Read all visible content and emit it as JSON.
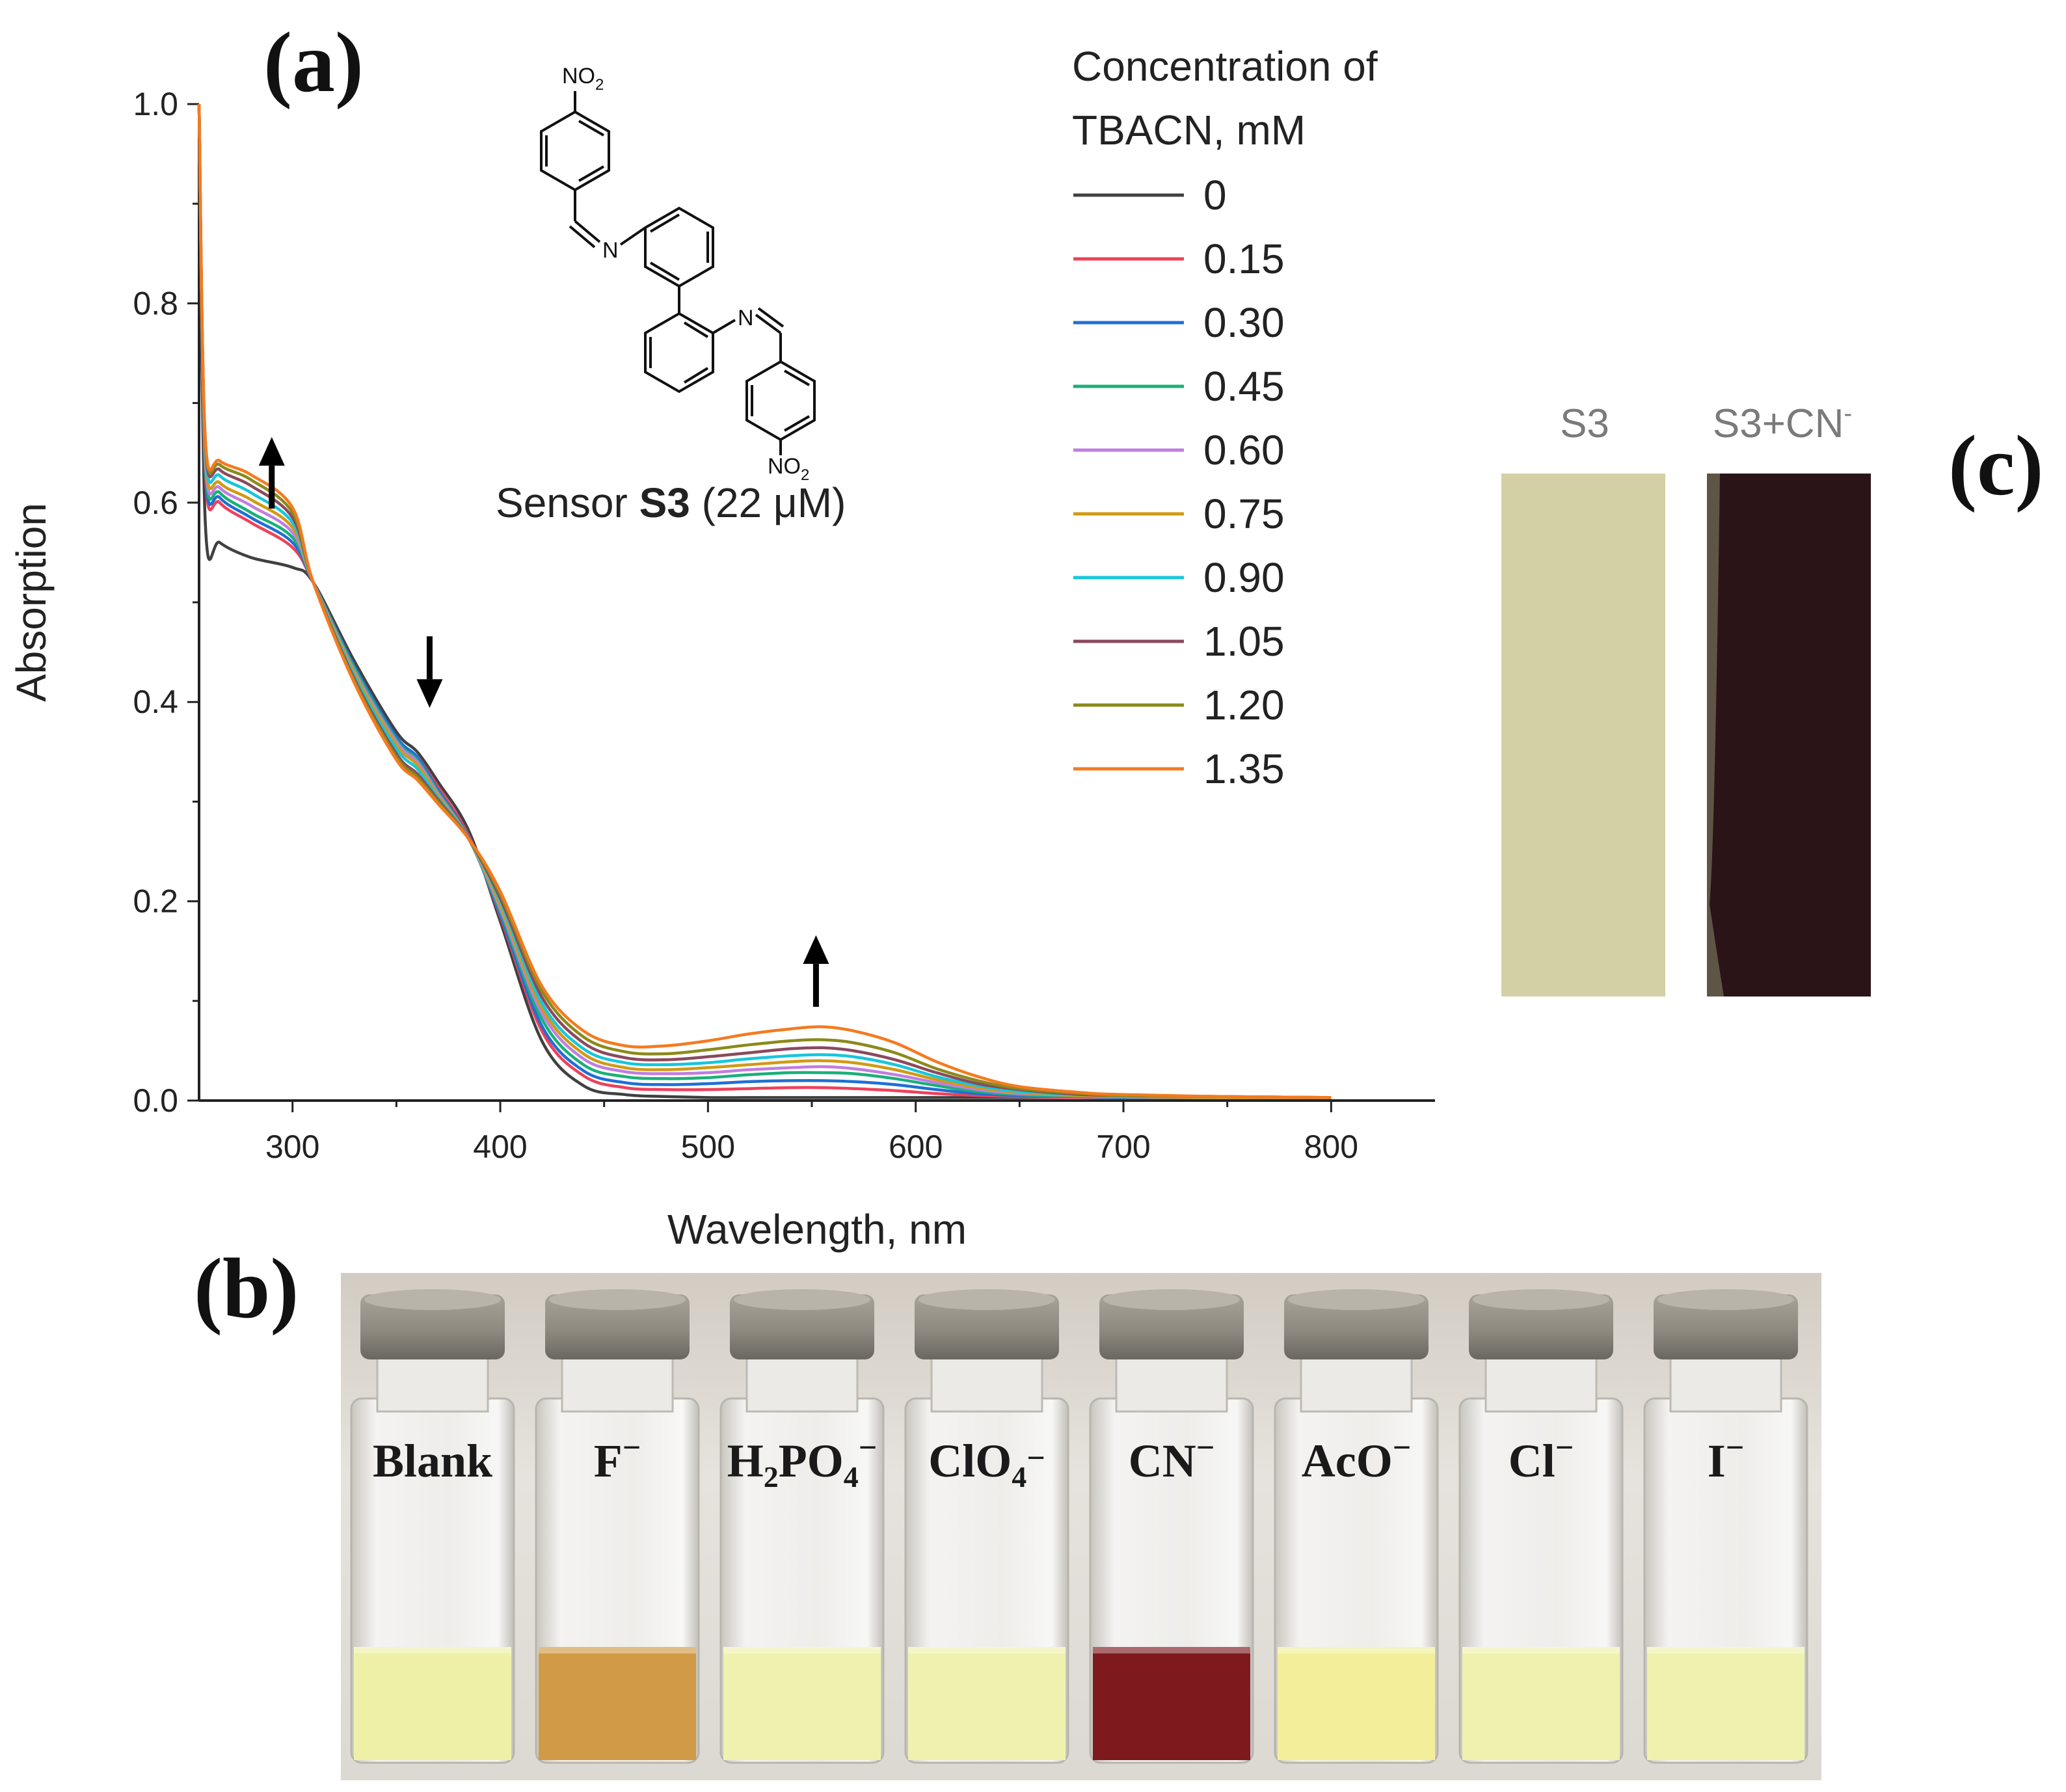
{
  "panels": {
    "a": "(a)",
    "b": "(b)",
    "c": "(c)"
  },
  "chart_data": {
    "type": "line",
    "title": "",
    "xlabel": "Wavelength, nm",
    "ylabel": "Absorption",
    "xlim": [
      255,
      850
    ],
    "ylim": [
      0,
      1.0
    ],
    "xticks": [
      300,
      400,
      500,
      600,
      700,
      800
    ],
    "yticks": [
      0.0,
      0.2,
      0.4,
      0.6,
      0.8,
      1.0
    ],
    "legend_title": "Concentration of TBACN, mM",
    "legend_title_lines": [
      "Concentration of",
      "TBACN, mM"
    ],
    "legend_position": "top-right",
    "x": [
      255,
      258,
      265,
      280,
      300,
      310,
      330,
      350,
      360,
      370,
      385,
      400,
      420,
      440,
      460,
      480,
      500,
      520,
      540,
      555,
      570,
      590,
      610,
      630,
      650,
      680,
      700,
      750,
      800
    ],
    "series": [
      {
        "name": "0",
        "color": "#404040",
        "values": [
          1.0,
          0.58,
          0.56,
          0.545,
          0.535,
          0.52,
          0.44,
          0.37,
          0.35,
          0.32,
          0.27,
          0.18,
          0.06,
          0.015,
          0.006,
          0.004,
          0.003,
          0.003,
          0.003,
          0.003,
          0.003,
          0.003,
          0.003,
          0.003,
          0.003,
          0.003,
          0.003,
          0.003,
          0.003
        ]
      },
      {
        "name": "0.15",
        "color": "#f0405a",
        "values": [
          1.0,
          0.63,
          0.6,
          0.58,
          0.555,
          0.52,
          0.435,
          0.365,
          0.345,
          0.315,
          0.265,
          0.185,
          0.07,
          0.025,
          0.013,
          0.011,
          0.011,
          0.012,
          0.013,
          0.013,
          0.012,
          0.01,
          0.007,
          0.005,
          0.004,
          0.003,
          0.003,
          0.003,
          0.003
        ]
      },
      {
        "name": "0.30",
        "color": "#1f6fd6",
        "values": [
          1.0,
          0.635,
          0.605,
          0.585,
          0.56,
          0.52,
          0.435,
          0.365,
          0.345,
          0.312,
          0.263,
          0.187,
          0.075,
          0.03,
          0.018,
          0.016,
          0.017,
          0.019,
          0.02,
          0.02,
          0.019,
          0.016,
          0.011,
          0.007,
          0.005,
          0.004,
          0.003,
          0.003,
          0.003
        ]
      },
      {
        "name": "0.45",
        "color": "#1ab07a",
        "values": [
          1.0,
          0.64,
          0.61,
          0.59,
          0.565,
          0.52,
          0.433,
          0.362,
          0.342,
          0.31,
          0.262,
          0.19,
          0.082,
          0.036,
          0.024,
          0.022,
          0.023,
          0.026,
          0.028,
          0.028,
          0.027,
          0.022,
          0.015,
          0.009,
          0.006,
          0.004,
          0.004,
          0.003,
          0.003
        ]
      },
      {
        "name": "0.60",
        "color": "#c07ee0",
        "values": [
          1.0,
          0.645,
          0.615,
          0.597,
          0.57,
          0.52,
          0.43,
          0.36,
          0.34,
          0.308,
          0.262,
          0.193,
          0.088,
          0.042,
          0.029,
          0.027,
          0.028,
          0.031,
          0.033,
          0.034,
          0.032,
          0.026,
          0.018,
          0.011,
          0.007,
          0.005,
          0.004,
          0.003,
          0.003
        ]
      },
      {
        "name": "0.75",
        "color": "#d19a14",
        "values": [
          1.0,
          0.65,
          0.62,
          0.603,
          0.575,
          0.52,
          0.428,
          0.357,
          0.337,
          0.306,
          0.262,
          0.196,
          0.093,
          0.047,
          0.033,
          0.031,
          0.033,
          0.036,
          0.039,
          0.04,
          0.038,
          0.031,
          0.021,
          0.013,
          0.008,
          0.005,
          0.004,
          0.003,
          0.003
        ]
      },
      {
        "name": "0.90",
        "color": "#16c6dc",
        "values": [
          1.0,
          0.655,
          0.627,
          0.61,
          0.58,
          0.52,
          0.425,
          0.353,
          0.333,
          0.304,
          0.262,
          0.2,
          0.098,
          0.052,
          0.038,
          0.036,
          0.038,
          0.042,
          0.045,
          0.046,
          0.044,
          0.036,
          0.024,
          0.015,
          0.009,
          0.006,
          0.005,
          0.004,
          0.003
        ]
      },
      {
        "name": "1.05",
        "color": "#8a4a5e",
        "values": [
          1.0,
          0.66,
          0.633,
          0.617,
          0.585,
          0.52,
          0.422,
          0.348,
          0.328,
          0.302,
          0.262,
          0.203,
          0.104,
          0.058,
          0.043,
          0.041,
          0.044,
          0.048,
          0.052,
          0.053,
          0.05,
          0.041,
          0.028,
          0.017,
          0.011,
          0.006,
          0.005,
          0.004,
          0.003
        ]
      },
      {
        "name": "1.20",
        "color": "#8b8a1a",
        "values": [
          1.0,
          0.663,
          0.638,
          0.623,
          0.59,
          0.52,
          0.42,
          0.345,
          0.325,
          0.3,
          0.262,
          0.207,
          0.11,
          0.064,
          0.049,
          0.047,
          0.051,
          0.056,
          0.06,
          0.061,
          0.058,
          0.048,
          0.032,
          0.02,
          0.012,
          0.007,
          0.005,
          0.004,
          0.003
        ]
      },
      {
        "name": "1.35",
        "color": "#f57a1f",
        "values": [
          1.0,
          0.665,
          0.642,
          0.628,
          0.595,
          0.52,
          0.418,
          0.342,
          0.322,
          0.298,
          0.262,
          0.21,
          0.115,
          0.07,
          0.055,
          0.055,
          0.06,
          0.067,
          0.072,
          0.074,
          0.07,
          0.058,
          0.039,
          0.024,
          0.014,
          0.008,
          0.006,
          0.004,
          0.003
        ]
      }
    ],
    "annotations": [
      {
        "text": "increase",
        "x": 290,
        "y": 0.63,
        "direction": "up"
      },
      {
        "text": "decrease",
        "x": 366,
        "y": 0.43,
        "direction": "down"
      },
      {
        "text": "increase",
        "x": 552,
        "y": 0.13,
        "direction": "up"
      }
    ]
  },
  "structure": {
    "label_prefix": "Sensor ",
    "label_bold": "S3",
    "label_suffix": " (22 μM)",
    "top_group": "NO",
    "top_sub": "2",
    "bottom_group": "NO",
    "bottom_sub": "2",
    "n1": "N",
    "n2": "N"
  },
  "vials": {
    "labels": [
      "Blank",
      "F",
      "H",
      "ClO",
      "CN",
      "AcO",
      "Cl",
      "I"
    ],
    "label_parts": [
      {
        "main": "Blank",
        "sub": "",
        "after": "",
        "sup": ""
      },
      {
        "main": "F",
        "sub": "",
        "after": "",
        "sup": "−"
      },
      {
        "main": "H",
        "sub": "2",
        "after": "PO",
        "sub2": "4",
        "sup": "−"
      },
      {
        "main": "ClO",
        "sub": "4",
        "after": "",
        "sup": "−"
      },
      {
        "main": "CN",
        "sub": "",
        "after": "",
        "sup": "−"
      },
      {
        "main": "AcO",
        "sub": "",
        "after": "",
        "sup": "−"
      },
      {
        "main": "Cl",
        "sub": "",
        "after": "",
        "sup": "−"
      },
      {
        "main": "I",
        "sub": "",
        "after": "",
        "sup": "−"
      }
    ],
    "liquid_colors": [
      "#eef0a8",
      "#d19a46",
      "#eef2ae",
      "#eef2ae",
      "#7e1a1e",
      "#f2ee9a",
      "#eef2ae",
      "#eef2ae"
    ]
  },
  "strips": {
    "label_1": "S3",
    "label_2": "S3+CN",
    "label_2_sup": "-",
    "color_1": "#d4d0a6",
    "color_2": "#2a1418"
  }
}
